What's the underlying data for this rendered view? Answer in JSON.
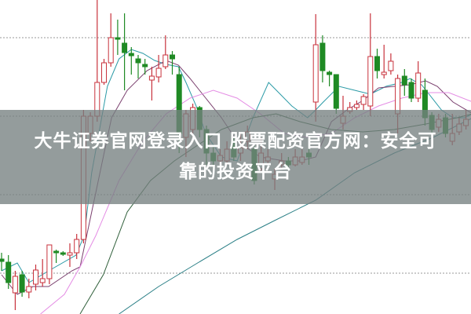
{
  "overlay": {
    "title_line1": "大牛证券官网登录入口 股票配资官方网：安全可",
    "title_line2": "靠的投资平台"
  },
  "colors": {
    "up": "#c8323c",
    "down": "#1f8a24",
    "ma5": "#2a9aa6",
    "ma10": "#7a3f6e",
    "ma20": "#e48ce4",
    "ma30": "#2f5f3a",
    "ma60": "#2a7f86",
    "grid": "#9a9a9a",
    "overlay": "#76807f"
  },
  "chart_data": {
    "type": "candlestick",
    "title": "",
    "grid": true,
    "ylim": [
      0,
      40
    ],
    "candles_ohlc": [
      [
        7.0,
        6.7,
        7.8,
        5.5
      ],
      [
        6.6,
        4.0,
        7.5,
        3.2
      ],
      [
        2.7,
        4.8,
        5.5,
        0.5
      ],
      [
        5.0,
        2.8,
        5.5,
        2.2
      ],
      [
        2.8,
        3.5,
        4.5,
        2.0
      ],
      [
        3.8,
        5.6,
        6.3,
        3.0
      ],
      [
        4.0,
        4.5,
        7.0,
        3.5
      ],
      [
        4.5,
        8.8,
        8.8,
        3.8
      ],
      [
        8.0,
        7.8,
        8.2,
        6.5
      ],
      [
        7.8,
        7.6,
        8.0,
        7.4
      ],
      [
        7.5,
        7.8,
        9.0,
        6.0
      ],
      [
        7.8,
        9.5,
        10.2,
        7.0
      ],
      [
        9.5,
        25.2,
        26.0,
        9.0
      ],
      [
        23.0,
        25.2,
        25.7,
        22.0
      ],
      [
        25.2,
        29.5,
        40.0,
        24.5
      ],
      [
        29.5,
        32.0,
        32.5,
        29.2
      ],
      [
        32.0,
        35.2,
        38.3,
        31.5
      ],
      [
        35.2,
        35.0,
        37.5,
        33.0
      ],
      [
        34.5,
        33.3,
        38.3,
        28.5
      ],
      [
        33.2,
        32.9,
        34.0,
        30.5
      ],
      [
        32.5,
        32.0,
        33.0,
        30.0
      ],
      [
        31.8,
        31.5,
        32.5,
        30.5
      ],
      [
        29.8,
        30.3,
        31.5,
        27.2
      ],
      [
        30.2,
        31.3,
        33.0,
        29.5
      ],
      [
        31.5,
        33.0,
        35.5,
        31.2
      ],
      [
        33.0,
        32.5,
        33.5,
        30.5
      ],
      [
        30.5,
        23.0,
        31.5,
        20.5
      ],
      [
        22.5,
        25.5,
        26.0,
        20.0
      ],
      [
        23.5,
        26.3,
        26.8,
        23.0
      ],
      [
        26.3,
        23.5,
        26.5,
        22.5
      ],
      [
        23.5,
        20.5,
        24.0,
        19.0
      ],
      [
        20.5,
        19.5,
        21.5,
        18.5
      ],
      [
        19.5,
        20.2,
        21.0,
        18.8
      ],
      [
        19.5,
        21.0,
        22.0,
        19.0
      ],
      [
        22.0,
        20.0,
        22.5,
        19.5
      ],
      [
        20.5,
        21.2,
        23.0,
        19.5
      ],
      [
        22.0,
        23.2,
        24.0,
        21.0
      ],
      [
        21.0,
        17.0,
        21.5,
        16.5
      ],
      [
        18.5,
        20.5,
        22.5,
        18.0
      ],
      [
        19.5,
        20.0,
        21.0,
        19.0
      ],
      [
        17.2,
        17.8,
        18.5,
        15.8
      ],
      [
        19.0,
        19.5,
        20.5,
        18.5
      ],
      [
        19.5,
        19.0,
        20.0,
        18.5
      ],
      [
        19.0,
        20.0,
        21.0,
        18.8
      ],
      [
        19.3,
        20.0,
        21.0,
        19.0
      ],
      [
        20.5,
        20.0,
        21.5,
        19.0
      ],
      [
        27.0,
        34.3,
        38.2,
        24.5
      ],
      [
        34.5,
        31.0,
        35.5,
        29.5
      ],
      [
        30.8,
        30.5,
        31.0,
        29.0
      ],
      [
        30.5,
        26.2,
        30.5,
        25.5
      ],
      [
        24.3,
        25.2,
        27.8,
        23.5
      ],
      [
        25.8,
        26.3,
        27.0,
        25.5
      ],
      [
        26.3,
        26.7,
        27.2,
        26.0
      ],
      [
        26.7,
        27.7,
        28.0,
        26.0
      ],
      [
        26.5,
        32.8,
        38.3,
        25.2
      ],
      [
        32.8,
        31.0,
        33.8,
        30.0
      ],
      [
        30.5,
        30.8,
        34.3,
        30.0
      ],
      [
        31.0,
        32.2,
        33.2,
        30.5
      ],
      [
        25.5,
        30.0,
        30.5,
        23.0
      ],
      [
        30.3,
        29.2,
        31.2,
        27.8
      ],
      [
        29.5,
        27.5,
        30.0,
        27.0
      ],
      [
        27.5,
        30.7,
        32.2,
        27.0
      ],
      [
        28.5,
        25.0,
        30.0,
        24.0
      ],
      [
        25.3,
        23.5,
        25.7,
        23.0
      ],
      [
        23.8,
        24.8,
        25.5,
        23.2
      ],
      [
        25.0,
        23.0,
        25.5,
        22.5
      ],
      [
        22.0,
        23.0,
        25.5,
        21.5
      ],
      [
        23.2,
        24.2,
        25.0,
        22.8
      ],
      [
        24.0,
        24.8,
        26.0,
        23.5
      ]
    ],
    "moving_averages": [
      {
        "key": "ma5",
        "points": [
          [
            0,
            5.5
          ],
          [
            2.3,
            6.5
          ],
          [
            4,
            4.0
          ],
          [
            6.9,
            5.5
          ],
          [
            10.9,
            7.5
          ],
          [
            12.1,
            10
          ],
          [
            13.2,
            18
          ],
          [
            15.5,
            29
          ],
          [
            17.2,
            32.5
          ],
          [
            19,
            33.7
          ],
          [
            20.7,
            33.2
          ],
          [
            22.4,
            32.3
          ],
          [
            24.1,
            31.8
          ],
          [
            25.9,
            31.5
          ],
          [
            27,
            29.5
          ],
          [
            28.5,
            26.5
          ],
          [
            29.9,
            23
          ],
          [
            32.2,
            20
          ],
          [
            34.5,
            19.5
          ],
          [
            36.8,
            25
          ],
          [
            39.1,
            29.5
          ],
          [
            40.8,
            28
          ],
          [
            42.5,
            26.5
          ],
          [
            44.8,
            25
          ],
          [
            46,
            26
          ],
          [
            47.1,
            27
          ],
          [
            49.4,
            29
          ],
          [
            51.7,
            28.5
          ],
          [
            54,
            28
          ],
          [
            56.3,
            29
          ],
          [
            58.6,
            29.5
          ],
          [
            59.8,
            30
          ],
          [
            61.5,
            29.2
          ],
          [
            62.6,
            28
          ],
          [
            64.4,
            26
          ],
          [
            66.1,
            25
          ],
          [
            67.8,
            25
          ],
          [
            69,
            25.5
          ]
        ]
      },
      {
        "key": "ma10",
        "points": [
          [
            0,
            5.0
          ],
          [
            2.3,
            2.5
          ],
          [
            4.6,
            3.5
          ],
          [
            6.9,
            3.5
          ],
          [
            10.3,
            5.5
          ],
          [
            11.5,
            6.0
          ],
          [
            13.8,
            15.5
          ],
          [
            16.1,
            25
          ],
          [
            18.4,
            28.5
          ],
          [
            21.3,
            31
          ],
          [
            24.1,
            32.3
          ],
          [
            25.9,
            31.7
          ],
          [
            27.6,
            30
          ],
          [
            29.9,
            27.5
          ],
          [
            32.2,
            25
          ],
          [
            34.5,
            22
          ],
          [
            37.9,
            20
          ],
          [
            41.4,
            19.5
          ],
          [
            43.7,
            19.5
          ],
          [
            46,
            20
          ],
          [
            48.3,
            24.5
          ],
          [
            50.6,
            26
          ],
          [
            52.9,
            27.2
          ],
          [
            55.2,
            28.8
          ],
          [
            57.5,
            29
          ],
          [
            59.8,
            29.2
          ],
          [
            62.1,
            29.7
          ],
          [
            63.8,
            29
          ],
          [
            66.1,
            27
          ],
          [
            69,
            25.5
          ]
        ]
      },
      {
        "key": "ma20",
        "points": [
          [
            5.7,
            0
          ],
          [
            9.2,
            2.5
          ],
          [
            11.5,
            6
          ],
          [
            13.8,
            10
          ],
          [
            17.2,
            17
          ],
          [
            20.7,
            22
          ],
          [
            24.1,
            25.5
          ],
          [
            27.6,
            27.5
          ],
          [
            31,
            28.5
          ],
          [
            34.5,
            27.5
          ],
          [
            37.9,
            25.5
          ],
          [
            41.4,
            23
          ],
          [
            44.8,
            22.5
          ],
          [
            48.3,
            23
          ],
          [
            51.7,
            25
          ],
          [
            55.2,
            26.5
          ],
          [
            58.6,
            27.5
          ],
          [
            62.1,
            28.2
          ],
          [
            65.5,
            28.2
          ],
          [
            69,
            27
          ]
        ]
      },
      {
        "key": "ma30",
        "points": [
          [
            11.5,
            0
          ],
          [
            14.9,
            5
          ],
          [
            18.4,
            13
          ],
          [
            21.8,
            17
          ],
          [
            25.3,
            19.5
          ],
          [
            28.7,
            21.5
          ],
          [
            32.2,
            23.5
          ],
          [
            36.8,
            25
          ],
          [
            40.2,
            25.5
          ],
          [
            43.7,
            24.5
          ],
          [
            48.3,
            23.5
          ],
          [
            52.9,
            23.2
          ],
          [
            57.5,
            23.5
          ],
          [
            62.1,
            24.2
          ],
          [
            66.7,
            25
          ],
          [
            69,
            25.5
          ]
        ]
      },
      {
        "key": "ma60",
        "points": [
          [
            17.2,
            0
          ],
          [
            23,
            3.5
          ],
          [
            28.7,
            6.5
          ],
          [
            34.5,
            9.5
          ],
          [
            40.2,
            12
          ],
          [
            46,
            14.5
          ],
          [
            51.7,
            18
          ],
          [
            57.5,
            20.5
          ],
          [
            63.2,
            22.5
          ],
          [
            69,
            25
          ]
        ]
      }
    ]
  }
}
